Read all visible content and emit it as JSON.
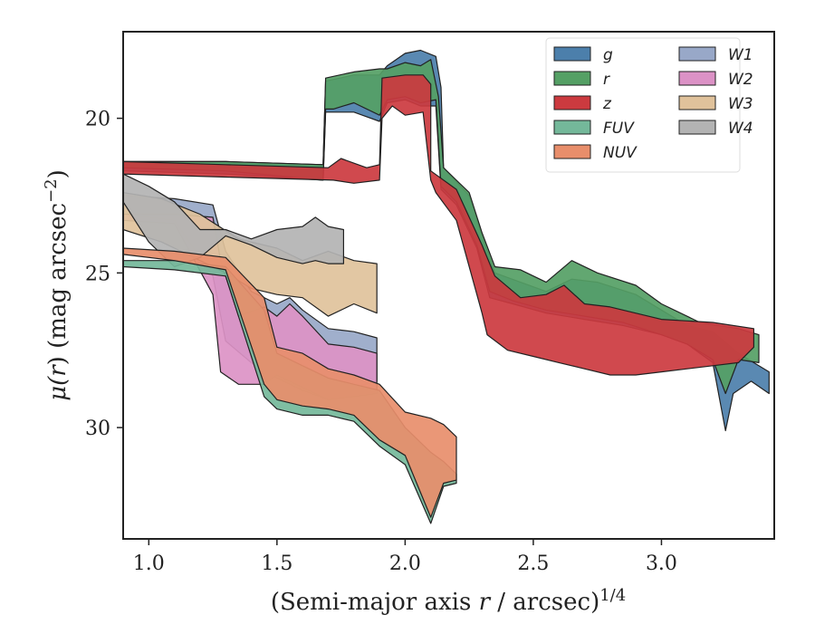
{
  "chart_data": {
    "type": "area",
    "description_free": true,
    "xlabel_prefix": "(Semi-major axis ",
    "xlabel_var": "r",
    "xlabel_suffix": " / arcsec)",
    "xlabel_sup": "1/4",
    "ylabel_prefix": "μ(",
    "ylabel_var": "r",
    "ylabel_mid": ") (mag arcsec",
    "ylabel_sup": "−2",
    "ylabel_suffix": ")",
    "xlim": [
      0.9,
      3.44
    ],
    "ylim": [
      33.6,
      17.2
    ],
    "y_inverted": true,
    "grid": false,
    "legend_placement": "top-right",
    "xticks": [
      1.0,
      1.5,
      2.0,
      2.5,
      3.0
    ],
    "xtick_labels": [
      "1.0",
      "1.5",
      "2.0",
      "2.5",
      "3.0"
    ],
    "yticks": [
      20,
      25,
      30
    ],
    "ytick_labels": [
      "20",
      "25",
      "30"
    ],
    "series": [
      {
        "name": "g",
        "color": "#4c7fab",
        "upper": [
          [
            0.9,
            21.4
          ],
          [
            1.3,
            21.4
          ],
          [
            1.68,
            21.5
          ],
          [
            1.69,
            18.8
          ],
          [
            1.8,
            18.6
          ],
          [
            1.9,
            18.6
          ],
          [
            1.93,
            18.3
          ],
          [
            2.0,
            17.9
          ],
          [
            2.06,
            17.8
          ],
          [
            2.12,
            18.0
          ],
          [
            2.14,
            19.0
          ],
          [
            2.15,
            21.6
          ],
          [
            2.25,
            22.5
          ],
          [
            2.3,
            23.8
          ],
          [
            2.35,
            25.0
          ],
          [
            2.45,
            25.3
          ],
          [
            2.55,
            25.6
          ],
          [
            2.65,
            25.2
          ],
          [
            2.75,
            25.3
          ],
          [
            2.9,
            25.7
          ],
          [
            3.0,
            26.2
          ],
          [
            3.1,
            26.7
          ],
          [
            3.2,
            26.9
          ],
          [
            3.3,
            27.6
          ],
          [
            3.42,
            28.2
          ]
        ],
        "lower": [
          [
            3.42,
            28.9
          ],
          [
            3.35,
            28.5
          ],
          [
            3.28,
            28.9
          ],
          [
            3.25,
            30.1
          ],
          [
            3.2,
            27.9
          ],
          [
            3.1,
            27.3
          ],
          [
            3.0,
            27.0
          ],
          [
            2.85,
            26.7
          ],
          [
            2.7,
            26.5
          ],
          [
            2.55,
            26.3
          ],
          [
            2.42,
            26.0
          ],
          [
            2.33,
            25.8
          ],
          [
            2.28,
            24.2
          ],
          [
            2.2,
            22.8
          ],
          [
            2.14,
            22.3
          ],
          [
            2.12,
            19.6
          ],
          [
            2.06,
            19.6
          ],
          [
            2.0,
            19.4
          ],
          [
            1.93,
            19.5
          ],
          [
            1.9,
            20.1
          ],
          [
            1.8,
            19.8
          ],
          [
            1.72,
            19.8
          ],
          [
            1.69,
            19.8
          ],
          [
            1.68,
            22.0
          ],
          [
            1.3,
            21.8
          ],
          [
            0.9,
            21.7
          ]
        ]
      },
      {
        "name": "r",
        "color": "#55a065",
        "upper": [
          [
            0.9,
            21.4
          ],
          [
            1.3,
            21.4
          ],
          [
            1.68,
            21.5
          ],
          [
            1.69,
            18.7
          ],
          [
            1.8,
            18.5
          ],
          [
            1.9,
            18.4
          ],
          [
            1.93,
            18.4
          ],
          [
            2.0,
            18.2
          ],
          [
            2.06,
            18.3
          ],
          [
            2.1,
            18.1
          ],
          [
            2.13,
            19.3
          ],
          [
            2.15,
            21.6
          ],
          [
            2.25,
            22.4
          ],
          [
            2.3,
            23.7
          ],
          [
            2.35,
            24.8
          ],
          [
            2.45,
            24.9
          ],
          [
            2.55,
            25.3
          ],
          [
            2.65,
            24.6
          ],
          [
            2.75,
            25.0
          ],
          [
            2.9,
            25.4
          ],
          [
            3.0,
            26.0
          ],
          [
            3.15,
            26.6
          ],
          [
            3.3,
            26.8
          ],
          [
            3.38,
            27.0
          ]
        ],
        "lower": [
          [
            3.38,
            27.9
          ],
          [
            3.3,
            27.8
          ],
          [
            3.25,
            28.9
          ],
          [
            3.2,
            27.8
          ],
          [
            3.1,
            27.3
          ],
          [
            3.0,
            27.0
          ],
          [
            2.85,
            26.6
          ],
          [
            2.7,
            26.4
          ],
          [
            2.55,
            26.2
          ],
          [
            2.42,
            25.9
          ],
          [
            2.33,
            25.6
          ],
          [
            2.28,
            24.1
          ],
          [
            2.2,
            22.7
          ],
          [
            2.14,
            22.2
          ],
          [
            2.12,
            19.4
          ],
          [
            2.06,
            19.5
          ],
          [
            2.0,
            19.3
          ],
          [
            1.93,
            19.4
          ],
          [
            1.9,
            19.9
          ],
          [
            1.8,
            19.5
          ],
          [
            1.72,
            19.7
          ],
          [
            1.69,
            19.7
          ],
          [
            1.68,
            22.0
          ],
          [
            1.3,
            21.7
          ],
          [
            0.9,
            21.6
          ]
        ]
      },
      {
        "name": "z",
        "color": "#cc3a3f",
        "upper": [
          [
            0.9,
            21.4
          ],
          [
            1.3,
            21.5
          ],
          [
            1.7,
            21.6
          ],
          [
            1.75,
            21.3
          ],
          [
            1.85,
            21.6
          ],
          [
            1.9,
            21.5
          ],
          [
            1.91,
            18.7
          ],
          [
            2.0,
            18.6
          ],
          [
            2.07,
            18.6
          ],
          [
            2.1,
            18.9
          ],
          [
            2.1,
            21.7
          ],
          [
            2.2,
            22.3
          ],
          [
            2.3,
            24.1
          ],
          [
            2.35,
            25.1
          ],
          [
            2.45,
            25.8
          ],
          [
            2.55,
            25.7
          ],
          [
            2.62,
            25.4
          ],
          [
            2.7,
            26.0
          ],
          [
            2.8,
            26.1
          ],
          [
            3.0,
            26.5
          ],
          [
            3.2,
            26.6
          ],
          [
            3.36,
            26.8
          ]
        ],
        "lower": [
          [
            3.36,
            27.4
          ],
          [
            3.3,
            27.9
          ],
          [
            3.2,
            28.0
          ],
          [
            3.1,
            28.1
          ],
          [
            3.0,
            28.2
          ],
          [
            2.9,
            28.3
          ],
          [
            2.8,
            28.3
          ],
          [
            2.7,
            28.1
          ],
          [
            2.6,
            27.9
          ],
          [
            2.5,
            27.7
          ],
          [
            2.4,
            27.5
          ],
          [
            2.32,
            27.0
          ],
          [
            2.3,
            26.3
          ],
          [
            2.2,
            23.3
          ],
          [
            2.12,
            22.4
          ],
          [
            2.1,
            22.0
          ],
          [
            2.07,
            19.8
          ],
          [
            2.0,
            19.9
          ],
          [
            1.95,
            19.6
          ],
          [
            1.91,
            20.0
          ],
          [
            1.9,
            22.0
          ],
          [
            1.8,
            22.1
          ],
          [
            1.72,
            22.0
          ],
          [
            1.3,
            21.9
          ],
          [
            0.9,
            21.8
          ]
        ]
      },
      {
        "name": "FUV",
        "color": "#74b89a",
        "upper": [
          [
            0.9,
            24.6
          ],
          [
            1.1,
            24.6
          ],
          [
            1.3,
            24.8
          ],
          [
            1.45,
            26.2
          ],
          [
            1.5,
            27.6
          ],
          [
            1.6,
            28.0
          ],
          [
            1.7,
            28.4
          ],
          [
            1.8,
            28.6
          ],
          [
            1.9,
            28.8
          ],
          [
            2.0,
            30.0
          ],
          [
            2.1,
            30.8
          ],
          [
            2.15,
            31.1
          ],
          [
            2.2,
            31.5
          ]
        ],
        "lower": [
          [
            2.2,
            31.8
          ],
          [
            2.15,
            31.9
          ],
          [
            2.1,
            33.1
          ],
          [
            2.0,
            31.2
          ],
          [
            1.9,
            30.6
          ],
          [
            1.8,
            29.8
          ],
          [
            1.7,
            29.6
          ],
          [
            1.6,
            29.6
          ],
          [
            1.5,
            29.4
          ],
          [
            1.45,
            29.0
          ],
          [
            1.3,
            25.1
          ],
          [
            1.1,
            24.9
          ],
          [
            0.9,
            24.8
          ]
        ]
      },
      {
        "name": "NUV",
        "color": "#e88e6b",
        "upper": [
          [
            0.9,
            24.2
          ],
          [
            1.1,
            24.3
          ],
          [
            1.3,
            24.5
          ],
          [
            1.45,
            25.8
          ],
          [
            1.5,
            27.4
          ],
          [
            1.6,
            27.6
          ],
          [
            1.7,
            28.1
          ],
          [
            1.8,
            28.3
          ],
          [
            1.9,
            28.6
          ],
          [
            2.0,
            29.5
          ],
          [
            2.1,
            29.7
          ],
          [
            2.15,
            29.9
          ],
          [
            2.2,
            30.3
          ]
        ],
        "lower": [
          [
            2.2,
            31.7
          ],
          [
            2.15,
            31.8
          ],
          [
            2.1,
            32.9
          ],
          [
            2.0,
            30.9
          ],
          [
            1.9,
            30.4
          ],
          [
            1.8,
            29.6
          ],
          [
            1.7,
            29.4
          ],
          [
            1.6,
            29.3
          ],
          [
            1.5,
            29.1
          ],
          [
            1.45,
            28.6
          ],
          [
            1.3,
            24.9
          ],
          [
            1.1,
            24.6
          ],
          [
            0.9,
            24.4
          ]
        ]
      },
      {
        "name": "W1",
        "color": "#98a8c8",
        "upper": [
          [
            0.9,
            22.5
          ],
          [
            1.1,
            22.6
          ],
          [
            1.25,
            22.8
          ],
          [
            1.3,
            24.3
          ],
          [
            1.4,
            25.6
          ],
          [
            1.5,
            26.0
          ],
          [
            1.55,
            25.8
          ],
          [
            1.6,
            26.2
          ],
          [
            1.7,
            26.8
          ],
          [
            1.8,
            26.9
          ],
          [
            1.89,
            27.1
          ]
        ],
        "lower": [
          [
            1.89,
            28.5
          ],
          [
            1.8,
            28.7
          ],
          [
            1.7,
            29.1
          ],
          [
            1.6,
            28.8
          ],
          [
            1.5,
            28.4
          ],
          [
            1.4,
            27.9
          ],
          [
            1.3,
            27.2
          ],
          [
            1.25,
            25.1
          ],
          [
            1.1,
            23.3
          ],
          [
            0.9,
            23.1
          ]
        ]
      },
      {
        "name": "W2",
        "color": "#dc92c6",
        "upper": [
          [
            0.9,
            23.1
          ],
          [
            1.1,
            23.1
          ],
          [
            1.25,
            23.2
          ],
          [
            1.28,
            24.6
          ],
          [
            1.35,
            26.4
          ],
          [
            1.45,
            26.1
          ],
          [
            1.5,
            26.4
          ],
          [
            1.55,
            26.0
          ],
          [
            1.6,
            26.4
          ],
          [
            1.7,
            27.3
          ],
          [
            1.8,
            27.4
          ],
          [
            1.89,
            27.6
          ]
        ],
        "lower": [
          [
            1.89,
            28.9
          ],
          [
            1.8,
            29.0
          ],
          [
            1.7,
            29.1
          ],
          [
            1.6,
            28.7
          ],
          [
            1.5,
            28.3
          ],
          [
            1.45,
            28.6
          ],
          [
            1.35,
            28.6
          ],
          [
            1.28,
            28.2
          ],
          [
            1.25,
            25.7
          ],
          [
            1.1,
            23.4
          ],
          [
            0.9,
            23.3
          ]
        ]
      },
      {
        "name": "W3",
        "color": "#e0c29b",
        "upper": [
          [
            0.9,
            22.4
          ],
          [
            1.05,
            22.6
          ],
          [
            1.2,
            23.1
          ],
          [
            1.35,
            23.9
          ],
          [
            1.5,
            24.2
          ],
          [
            1.6,
            24.6
          ],
          [
            1.7,
            24.3
          ],
          [
            1.8,
            24.6
          ],
          [
            1.89,
            24.7
          ]
        ],
        "lower": [
          [
            1.89,
            26.3
          ],
          [
            1.8,
            26.0
          ],
          [
            1.7,
            26.4
          ],
          [
            1.6,
            25.8
          ],
          [
            1.5,
            25.7
          ],
          [
            1.4,
            25.5
          ],
          [
            1.3,
            25.0
          ],
          [
            1.2,
            24.6
          ],
          [
            1.05,
            24.0
          ],
          [
            0.9,
            23.6
          ]
        ]
      },
      {
        "name": "W4",
        "color": "#b3b3b3",
        "upper": [
          [
            0.9,
            21.8
          ],
          [
            1.0,
            22.2
          ],
          [
            1.1,
            22.7
          ],
          [
            1.2,
            23.6
          ],
          [
            1.3,
            23.6
          ],
          [
            1.4,
            23.9
          ],
          [
            1.5,
            23.6
          ],
          [
            1.6,
            23.5
          ],
          [
            1.65,
            23.2
          ],
          [
            1.7,
            23.5
          ],
          [
            1.76,
            23.6
          ]
        ],
        "lower": [
          [
            1.76,
            24.7
          ],
          [
            1.7,
            24.7
          ],
          [
            1.65,
            24.6
          ],
          [
            1.6,
            24.7
          ],
          [
            1.5,
            24.5
          ],
          [
            1.4,
            24.1
          ],
          [
            1.3,
            23.8
          ],
          [
            1.2,
            24.5
          ],
          [
            1.1,
            24.8
          ],
          [
            1.0,
            24.0
          ],
          [
            0.9,
            22.7
          ]
        ]
      }
    ],
    "legend_order": [
      "g",
      "r",
      "z",
      "FUV",
      "NUV",
      "W1",
      "W2",
      "W3",
      "W4"
    ],
    "draw_order": [
      "g",
      "r",
      "W1",
      "W2",
      "W3",
      "W4",
      "FUV",
      "NUV",
      "z"
    ]
  }
}
